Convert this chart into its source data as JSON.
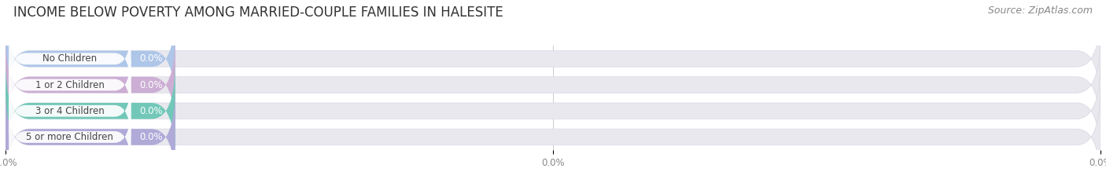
{
  "title": "INCOME BELOW POVERTY AMONG MARRIED-COUPLE FAMILIES IN HALESITE",
  "source": "Source: ZipAtlas.com",
  "categories": [
    "No Children",
    "1 or 2 Children",
    "3 or 4 Children",
    "5 or more Children"
  ],
  "values": [
    0.0,
    0.0,
    0.0,
    0.0
  ],
  "bar_colors": [
    "#aec6e8",
    "#ccaed4",
    "#72c8b8",
    "#b0aad8"
  ],
  "background_color": "#ffffff",
  "bar_bg_color": "#e8e8ee",
  "bar_bg_edge_color": "#d8d8e4",
  "title_fontsize": 12,
  "source_fontsize": 9,
  "cat_fontsize": 8.5,
  "val_fontsize": 8.5,
  "tick_fontsize": 8.5
}
